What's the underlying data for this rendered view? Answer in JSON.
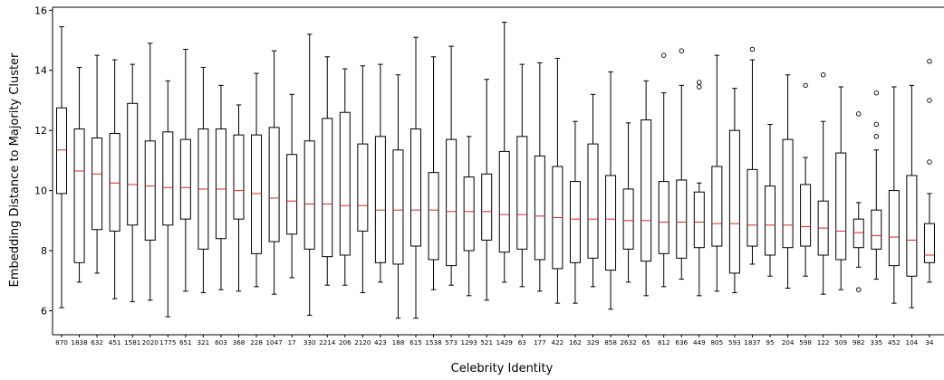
{
  "chart_data": {
    "type": "box",
    "xlabel": "Celebrity Identity",
    "ylabel": "Embedding Distance to Majority Cluster",
    "ylim": [
      5.2,
      16.1
    ],
    "yticks": [
      6,
      8,
      10,
      12,
      14,
      16
    ],
    "grid": false,
    "colors": {
      "box": "#000000",
      "median": "#d62728",
      "frame": "#000000"
    },
    "categories": [
      "870",
      "1838",
      "632",
      "451",
      "1581",
      "2020",
      "1775",
      "651",
      "321",
      "603",
      "368",
      "228",
      "1047",
      "17",
      "330",
      "2214",
      "206",
      "2120",
      "423",
      "188",
      "615",
      "1538",
      "573",
      "1293",
      "521",
      "1429",
      "63",
      "177",
      "422",
      "162",
      "329",
      "858",
      "2632",
      "65",
      "812",
      "636",
      "449",
      "805",
      "593",
      "1837",
      "95",
      "204",
      "598",
      "122",
      "509",
      "982",
      "335",
      "452",
      "104",
      "34"
    ],
    "boxes": [
      {
        "whislo": 6.1,
        "q1": 9.9,
        "med": 11.35,
        "q3": 12.75,
        "whishi": 15.45,
        "fliers": []
      },
      {
        "whislo": 6.95,
        "q1": 7.6,
        "med": 10.65,
        "q3": 12.05,
        "whishi": 14.1,
        "fliers": []
      },
      {
        "whislo": 7.25,
        "q1": 8.7,
        "med": 10.55,
        "q3": 11.75,
        "whishi": 14.5,
        "fliers": []
      },
      {
        "whislo": 6.4,
        "q1": 8.65,
        "med": 10.25,
        "q3": 11.9,
        "whishi": 14.35,
        "fliers": []
      },
      {
        "whislo": 6.3,
        "q1": 8.85,
        "med": 10.2,
        "q3": 12.9,
        "whishi": 14.2,
        "fliers": []
      },
      {
        "whislo": 6.35,
        "q1": 8.35,
        "med": 10.15,
        "q3": 11.65,
        "whishi": 14.9,
        "fliers": []
      },
      {
        "whislo": 5.8,
        "q1": 8.85,
        "med": 10.1,
        "q3": 11.95,
        "whishi": 13.65,
        "fliers": []
      },
      {
        "whislo": 6.65,
        "q1": 9.05,
        "med": 10.1,
        "q3": 11.7,
        "whishi": 14.7,
        "fliers": []
      },
      {
        "whislo": 6.6,
        "q1": 8.05,
        "med": 10.05,
        "q3": 12.05,
        "whishi": 14.1,
        "fliers": []
      },
      {
        "whislo": 6.7,
        "q1": 8.4,
        "med": 10.05,
        "q3": 12.05,
        "whishi": 13.5,
        "fliers": []
      },
      {
        "whislo": 6.65,
        "q1": 9.05,
        "med": 10.0,
        "q3": 11.85,
        "whishi": 12.85,
        "fliers": []
      },
      {
        "whislo": 6.8,
        "q1": 7.9,
        "med": 9.9,
        "q3": 11.85,
        "whishi": 13.9,
        "fliers": []
      },
      {
        "whislo": 6.55,
        "q1": 8.3,
        "med": 9.75,
        "q3": 12.1,
        "whishi": 14.65,
        "fliers": []
      },
      {
        "whislo": 7.1,
        "q1": 8.55,
        "med": 9.65,
        "q3": 11.2,
        "whishi": 13.2,
        "fliers": []
      },
      {
        "whislo": 5.85,
        "q1": 8.05,
        "med": 9.55,
        "q3": 11.65,
        "whishi": 15.2,
        "fliers": []
      },
      {
        "whislo": 6.85,
        "q1": 7.8,
        "med": 9.55,
        "q3": 12.4,
        "whishi": 14.45,
        "fliers": []
      },
      {
        "whislo": 6.85,
        "q1": 7.85,
        "med": 9.5,
        "q3": 12.6,
        "whishi": 14.05,
        "fliers": []
      },
      {
        "whislo": 6.6,
        "q1": 8.65,
        "med": 9.5,
        "q3": 11.55,
        "whishi": 14.15,
        "fliers": []
      },
      {
        "whislo": 6.95,
        "q1": 7.6,
        "med": 9.35,
        "q3": 11.8,
        "whishi": 14.2,
        "fliers": []
      },
      {
        "whislo": 5.75,
        "q1": 7.55,
        "med": 9.35,
        "q3": 11.35,
        "whishi": 13.85,
        "fliers": []
      },
      {
        "whislo": 5.75,
        "q1": 8.15,
        "med": 9.35,
        "q3": 12.05,
        "whishi": 15.1,
        "fliers": []
      },
      {
        "whislo": 6.7,
        "q1": 7.7,
        "med": 9.35,
        "q3": 10.6,
        "whishi": 14.45,
        "fliers": []
      },
      {
        "whislo": 6.85,
        "q1": 7.5,
        "med": 9.3,
        "q3": 11.7,
        "whishi": 14.8,
        "fliers": []
      },
      {
        "whislo": 6.5,
        "q1": 8.0,
        "med": 9.3,
        "q3": 10.45,
        "whishi": 11.8,
        "fliers": []
      },
      {
        "whislo": 6.35,
        "q1": 8.35,
        "med": 9.3,
        "q3": 10.55,
        "whishi": 13.7,
        "fliers": []
      },
      {
        "whislo": 6.95,
        "q1": 7.95,
        "med": 9.2,
        "q3": 11.3,
        "whishi": 15.6,
        "fliers": []
      },
      {
        "whislo": 6.8,
        "q1": 8.05,
        "med": 9.2,
        "q3": 11.8,
        "whishi": 14.2,
        "fliers": []
      },
      {
        "whislo": 6.65,
        "q1": 7.7,
        "med": 9.15,
        "q3": 11.15,
        "whishi": 14.25,
        "fliers": []
      },
      {
        "whislo": 6.25,
        "q1": 7.4,
        "med": 9.1,
        "q3": 10.8,
        "whishi": 14.4,
        "fliers": []
      },
      {
        "whislo": 6.25,
        "q1": 7.6,
        "med": 9.05,
        "q3": 10.3,
        "whishi": 12.3,
        "fliers": []
      },
      {
        "whislo": 6.8,
        "q1": 7.75,
        "med": 9.05,
        "q3": 11.55,
        "whishi": 13.2,
        "fliers": []
      },
      {
        "whislo": 6.05,
        "q1": 7.35,
        "med": 9.05,
        "q3": 10.5,
        "whishi": 13.95,
        "fliers": []
      },
      {
        "whislo": 6.95,
        "q1": 8.05,
        "med": 9.0,
        "q3": 10.05,
        "whishi": 12.25,
        "fliers": []
      },
      {
        "whislo": 6.5,
        "q1": 7.65,
        "med": 9.0,
        "q3": 12.35,
        "whishi": 13.65,
        "fliers": []
      },
      {
        "whislo": 6.8,
        "q1": 7.9,
        "med": 8.95,
        "q3": 10.3,
        "whishi": 13.25,
        "fliers": [
          14.5
        ]
      },
      {
        "whislo": 7.05,
        "q1": 7.75,
        "med": 8.95,
        "q3": 10.35,
        "whishi": 13.5,
        "fliers": [
          14.65
        ]
      },
      {
        "whislo": 6.5,
        "q1": 8.1,
        "med": 8.95,
        "q3": 9.95,
        "whishi": 10.25,
        "fliers": [
          13.45,
          13.6
        ]
      },
      {
        "whislo": 6.65,
        "q1": 8.15,
        "med": 8.9,
        "q3": 10.8,
        "whishi": 14.5,
        "fliers": []
      },
      {
        "whislo": 6.6,
        "q1": 7.25,
        "med": 8.9,
        "q3": 12.0,
        "whishi": 13.4,
        "fliers": []
      },
      {
        "whislo": 7.55,
        "q1": 8.15,
        "med": 8.85,
        "q3": 10.7,
        "whishi": 14.35,
        "fliers": [
          14.7
        ]
      },
      {
        "whislo": 7.15,
        "q1": 7.85,
        "med": 8.85,
        "q3": 10.15,
        "whishi": 12.2,
        "fliers": []
      },
      {
        "whislo": 6.75,
        "q1": 8.1,
        "med": 8.85,
        "q3": 11.7,
        "whishi": 13.85,
        "fliers": []
      },
      {
        "whislo": 7.15,
        "q1": 8.15,
        "med": 8.8,
        "q3": 10.2,
        "whishi": 11.1,
        "fliers": [
          13.5
        ]
      },
      {
        "whislo": 6.55,
        "q1": 7.85,
        "med": 8.75,
        "q3": 9.65,
        "whishi": 12.3,
        "fliers": [
          13.85
        ]
      },
      {
        "whislo": 6.7,
        "q1": 7.7,
        "med": 8.65,
        "q3": 11.25,
        "whishi": 13.45,
        "fliers": []
      },
      {
        "whislo": 7.45,
        "q1": 8.1,
        "med": 8.6,
        "q3": 9.05,
        "whishi": 9.6,
        "fliers": [
          6.7,
          12.55
        ]
      },
      {
        "whislo": 7.05,
        "q1": 8.05,
        "med": 8.5,
        "q3": 9.35,
        "whishi": 11.35,
        "fliers": [
          11.8,
          12.2,
          13.25
        ]
      },
      {
        "whislo": 6.25,
        "q1": 7.5,
        "med": 8.45,
        "q3": 10.0,
        "whishi": 13.45,
        "fliers": []
      },
      {
        "whislo": 6.1,
        "q1": 7.15,
        "med": 8.35,
        "q3": 10.5,
        "whishi": 13.5,
        "fliers": []
      },
      {
        "whislo": 6.95,
        "q1": 7.6,
        "med": 7.85,
        "q3": 8.9,
        "whishi": 9.9,
        "fliers": [
          10.95,
          13.0,
          14.3
        ]
      }
    ]
  }
}
